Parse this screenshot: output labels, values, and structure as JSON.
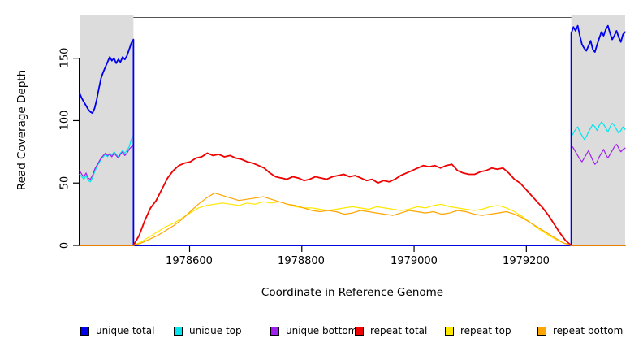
{
  "legend": {
    "items": [
      {
        "label": "unique total",
        "color": "#0000EE"
      },
      {
        "label": "unique top",
        "color": "#00E5EE"
      },
      {
        "label": "unique bottom",
        "color": "#A020F0"
      },
      {
        "label": "repeat total",
        "color": "#F00000"
      },
      {
        "label": "repeat top",
        "color": "#FFE800"
      },
      {
        "label": "repeat bottom",
        "color": "#FFA500"
      }
    ]
  },
  "chart_data": {
    "type": "line",
    "title": "",
    "xlabel": "Coordinate in Reference Genome",
    "ylabel": "Read Coverage Depth",
    "xlim": [
      1978404,
      1979376
    ],
    "ylim": [
      0,
      183
    ],
    "x_ticks": [
      1978600,
      1978800,
      1979000,
      1979200
    ],
    "y_ticks": [
      0,
      50,
      100,
      150
    ],
    "x_tick_labels": [
      "1978600",
      "1978800",
      "1979000",
      "1979200"
    ],
    "y_tick_labels": [
      "0",
      "50",
      "100",
      "150"
    ],
    "grid": false,
    "legend_position": "bottom",
    "background_color": "#FFFFFF",
    "shaded_regions": [
      {
        "x0": 1978404,
        "x1": 1978500,
        "color": "#DCDCDC"
      },
      {
        "x0": 1979280,
        "x1": 1979376,
        "color": "#DCDCDC"
      }
    ],
    "region_note_colors": {
      "axis": "#000000",
      "box_top": "#555555"
    },
    "series": [
      {
        "name": "unique top",
        "color": "#00E5EE",
        "lw": 1.2,
        "segments": [
          {
            "x0": 1978404,
            "x1": 1978500,
            "values": [
              57,
              55,
              53,
              56,
              52,
              51,
              54,
              59,
              63,
              66,
              69,
              71,
              73,
              71,
              74,
              72,
              75,
              73,
              71,
              74,
              76,
              74,
              76,
              79,
              85,
              88
            ]
          },
          {
            "x0": 1978500,
            "x1": 1979280,
            "values": [
              0,
              0
            ]
          },
          {
            "x0": 1979280,
            "x1": 1979376,
            "values": [
              87,
              90,
              93,
              95,
              91,
              88,
              85,
              87,
              91,
              94,
              97,
              95,
              92,
              96,
              99,
              97,
              94,
              91,
              95,
              98,
              96,
              93,
              90,
              92,
              95,
              93
            ]
          }
        ]
      },
      {
        "name": "unique bottom",
        "color": "#A020F0",
        "lw": 1.2,
        "segments": [
          {
            "x0": 1978404,
            "x1": 1978500,
            "values": [
              60,
              57,
              55,
              58,
              54,
              53,
              56,
              61,
              64,
              67,
              70,
              72,
              74,
              72,
              73,
              71,
              74,
              72,
              70,
              73,
              75,
              72,
              74,
              77,
              79,
              80
            ]
          },
          {
            "x0": 1978500,
            "x1": 1979280,
            "values": [
              0,
              0
            ]
          },
          {
            "x0": 1979280,
            "x1": 1979376,
            "values": [
              80,
              78,
              75,
              72,
              69,
              67,
              70,
              73,
              76,
              72,
              68,
              65,
              67,
              71,
              74,
              77,
              73,
              70,
              73,
              76,
              79,
              81,
              78,
              75,
              77,
              78
            ]
          }
        ]
      },
      {
        "name": "unique total",
        "color": "#0000EE",
        "lw": 1.8,
        "segments": [
          {
            "x0": 1978404,
            "x1": 1978500,
            "values": [
              122,
              118,
              115,
              112,
              109,
              107,
              106,
              110,
              117,
              126,
              134,
              139,
              143,
              147,
              151,
              148,
              150,
              146,
              149,
              147,
              151,
              149,
              152,
              157,
              162,
              165
            ]
          },
          {
            "x0": 1978500,
            "x1": 1979280,
            "values": [
              0,
              0
            ]
          },
          {
            "x0": 1979280,
            "x1": 1979376,
            "values": [
              170,
              175,
              172,
              176,
              168,
              161,
              158,
              156,
              160,
              164,
              157,
              155,
              161,
              166,
              171,
              168,
              173,
              176,
              170,
              165,
              168,
              172,
              167,
              163,
              169,
              171
            ]
          }
        ]
      },
      {
        "name": "repeat total",
        "color": "#F00000",
        "lw": 1.8,
        "segments": [
          {
            "x0": 1978404,
            "x1": 1978500,
            "values": [
              0,
              0
            ]
          },
          {
            "x0": 1978500,
            "x1": 1979280,
            "values": [
              0,
              8,
              20,
              30,
              36,
              45,
              54,
              60,
              64,
              66,
              67,
              70,
              71,
              74,
              72,
              73,
              71,
              72,
              70,
              69,
              67,
              66,
              64,
              62,
              58,
              55,
              54,
              53,
              55,
              54,
              52,
              53,
              55,
              54,
              53,
              55,
              56,
              57,
              55,
              56,
              54,
              52,
              53,
              50,
              52,
              51,
              53,
              56,
              58,
              60,
              62,
              64,
              63,
              64,
              62,
              64,
              65,
              60,
              58,
              57,
              57,
              59,
              60,
              62,
              61,
              62,
              58,
              53,
              50,
              45,
              40,
              35,
              30,
              24,
              17,
              10,
              4,
              0
            ]
          },
          {
            "x0": 1979280,
            "x1": 1979376,
            "values": [
              0,
              0
            ]
          }
        ]
      },
      {
        "name": "repeat top",
        "color": "#FFE800",
        "lw": 1.2,
        "segments": [
          {
            "x0": 1978404,
            "x1": 1978500,
            "values": [
              0,
              0
            ]
          },
          {
            "x0": 1978500,
            "x1": 1979280,
            "values": [
              0,
              3,
              7,
              11,
              15,
              18,
              22,
              26,
              30,
              32,
              33,
              34,
              33,
              32,
              34,
              33,
              35,
              34,
              35,
              33,
              31,
              30,
              30,
              29,
              28,
              29,
              30,
              31,
              30,
              29,
              31,
              30,
              29,
              28,
              29,
              31,
              30,
              32,
              33,
              31,
              30,
              29,
              28,
              29,
              31,
              32,
              30,
              27,
              23,
              18,
              13,
              9,
              5,
              2,
              0
            ]
          },
          {
            "x0": 1979280,
            "x1": 1979376,
            "values": [
              0,
              0
            ]
          }
        ]
      },
      {
        "name": "repeat bottom",
        "color": "#FFA500",
        "lw": 1.2,
        "segments": [
          {
            "x0": 1978404,
            "x1": 1978500,
            "values": [
              0,
              0
            ]
          },
          {
            "x0": 1978500,
            "x1": 1979280,
            "values": [
              0,
              2,
              5,
              8,
              12,
              16,
              21,
              27,
              33,
              38,
              42,
              40,
              38,
              36,
              37,
              38,
              39,
              37,
              35,
              33,
              32,
              30,
              28,
              27,
              28,
              27,
              25,
              26,
              28,
              27,
              26,
              25,
              24,
              26,
              28,
              27,
              26,
              27,
              25,
              26,
              28,
              27,
              25,
              24,
              25,
              26,
              27,
              25,
              22,
              18,
              14,
              10,
              6,
              2,
              0
            ]
          },
          {
            "x0": 1979280,
            "x1": 1979376,
            "values": [
              0,
              0
            ]
          }
        ]
      }
    ]
  }
}
